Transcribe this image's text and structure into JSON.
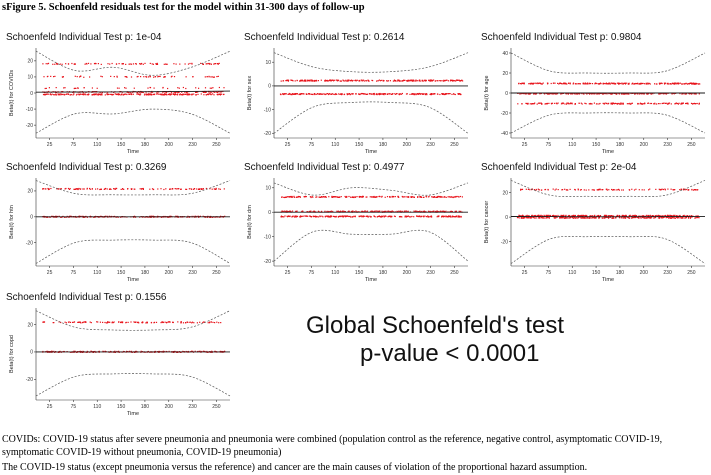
{
  "figure_title": "sFigure 5. Schoenfeld residuals test for the model within 31-300 days of follow-up",
  "global_test": {
    "line1": "Global Schoenfeld's test",
    "line2": "p-value < 0.0001"
  },
  "footnotes": [
    "COVIDs: COVID-19 status after severe pneumonia and pneumonia were combined (population control as the reference, negative control, asymptomatic COVID-19, symptomatic COVID-19 without pneumonia, COVID-19 pneumonia)",
    "The COVID-19 status (except pneumonia versus the reference) and cancer are the main causes of violation of the proportional hazard assumption."
  ],
  "colors": {
    "points": "#e8141c",
    "fit": "#1a1a1a",
    "band": "#555555",
    "axis": "#333333"
  },
  "chart_data": [
    {
      "type": "scatter",
      "title": "Schoenfeld Individual Test p: 1e-04",
      "xlabel": "Time",
      "ylabel": "Beta(t) for COVIDs",
      "x_ticks": [
        "25",
        "75",
        "110",
        "150",
        "180",
        "200",
        "230",
        "250"
      ],
      "y_ticks": [
        -20,
        -10,
        0,
        10,
        20
      ],
      "ylim": [
        -28,
        28
      ],
      "point_bands": [
        -0.5,
        1.0,
        3.5,
        10.5,
        18.5
      ],
      "point_band_density": [
        1.0,
        0.6,
        0.15,
        0.25,
        0.35
      ],
      "fit": [
        0.5,
        0.6,
        0.7,
        0.8,
        1.0,
        1.2
      ],
      "ci_upper": [
        26,
        14,
        16,
        11,
        16,
        26
      ],
      "ci_lower": [
        -25,
        -13,
        -13,
        -10,
        -13,
        -25
      ]
    },
    {
      "type": "scatter",
      "title": "Schoenfeld Individual Test p: 0.2614",
      "xlabel": "Time",
      "ylabel": "Beta(t) for sex",
      "x_ticks": [
        "25",
        "75",
        "110",
        "150",
        "180",
        "200",
        "230",
        "250"
      ],
      "y_ticks": [
        -20,
        -10,
        0,
        10
      ],
      "ylim": [
        -22,
        16
      ],
      "point_bands": [
        2.5,
        -3.2
      ],
      "point_band_density": [
        1.0,
        1.0
      ],
      "fit": [
        0.0,
        0.0,
        0.0,
        0.0,
        0.0,
        0.0
      ],
      "ci_upper": [
        14,
        8,
        6,
        6,
        8,
        14
      ],
      "ci_lower": [
        -20,
        -9,
        -7,
        -7,
        -9,
        -20
      ]
    },
    {
      "type": "scatter",
      "title": "Schoenfeld Individual Test p: 0.9804",
      "xlabel": "Time",
      "ylabel": "Beta(t) for age",
      "x_ticks": [
        "25",
        "75",
        "110",
        "150",
        "180",
        "200",
        "230",
        "250"
      ],
      "y_ticks": [
        -40,
        -20,
        0,
        20,
        40
      ],
      "ylim": [
        -45,
        45
      ],
      "point_bands": [
        10,
        0,
        -10
      ],
      "point_band_density": [
        1.0,
        1.0,
        0.7
      ],
      "fit": [
        0.0,
        0.0,
        0.0,
        0.0,
        0.0,
        0.0
      ],
      "ci_upper": [
        40,
        22,
        20,
        20,
        22,
        40
      ],
      "ci_lower": [
        -40,
        -22,
        -20,
        -20,
        -22,
        -40
      ]
    },
    {
      "type": "scatter",
      "title": "Schoenfeld Individual Test p: 0.3269",
      "xlabel": "Time",
      "ylabel": "Beta(t) for htn",
      "x_ticks": [
        "25",
        "75",
        "110",
        "150",
        "180",
        "200",
        "230",
        "250"
      ],
      "y_ticks": [
        -20,
        0,
        20
      ],
      "ylim": [
        -38,
        30
      ],
      "point_bands": [
        0.5,
        22
      ],
      "point_band_density": [
        1.0,
        0.5
      ],
      "fit": [
        0.0,
        0.0,
        0.0,
        0.0,
        0.0,
        0.0
      ],
      "ci_upper": [
        28,
        18,
        17,
        17,
        18,
        28
      ],
      "ci_lower": [
        -36,
        -20,
        -18,
        -18,
        -20,
        -36
      ]
    },
    {
      "type": "scatter",
      "title": "Schoenfeld Individual Test p: 0.4977",
      "xlabel": "Time",
      "ylabel": "Beta(t) for dm",
      "x_ticks": [
        "25",
        "75",
        "110",
        "150",
        "180",
        "200",
        "230",
        "250"
      ],
      "y_ticks": [
        -20,
        -10,
        0,
        10
      ],
      "ylim": [
        -22,
        14
      ],
      "point_bands": [
        6.5,
        0.5,
        -1.5
      ],
      "point_band_density": [
        0.8,
        1.0,
        1.0
      ],
      "fit": [
        0.0,
        0.0,
        0.0,
        0.0,
        0.0,
        0.0
      ],
      "ci_upper": [
        12,
        7,
        10,
        9,
        7,
        12
      ],
      "ci_lower": [
        -20,
        -8,
        -9,
        -9,
        -8,
        -20
      ]
    },
    {
      "type": "scatter",
      "title": "Schoenfeld Individual Test p: 2e-04",
      "xlabel": "Time",
      "ylabel": "Beta(t) for cancer",
      "x_ticks": [
        "25",
        "75",
        "110",
        "150",
        "180",
        "200",
        "230",
        "250"
      ],
      "y_ticks": [
        -20,
        0,
        20
      ],
      "ylim": [
        -40,
        32
      ],
      "point_bands": [
        1.5,
        0.0,
        23
      ],
      "point_band_density": [
        1.0,
        1.0,
        0.45
      ],
      "fit": [
        0.5,
        0.4,
        0.3,
        0.3,
        0.4,
        0.6
      ],
      "ci_upper": [
        30,
        18,
        17,
        17,
        18,
        30
      ],
      "ci_lower": [
        -38,
        -18,
        -16,
        -16,
        -18,
        -38
      ]
    },
    {
      "type": "scatter",
      "title": "Schoenfeld Individual Test p: 0.1556",
      "xlabel": "Time",
      "ylabel": "Beta(t) for copd",
      "x_ticks": [
        "25",
        "75",
        "110",
        "150",
        "180",
        "200",
        "230",
        "250"
      ],
      "y_ticks": [
        -20,
        0,
        20
      ],
      "ylim": [
        -35,
        32
      ],
      "point_bands": [
        22,
        0.5
      ],
      "point_band_density": [
        0.5,
        1.0
      ],
      "fit": [
        0.0,
        0.0,
        0.0,
        0.0,
        0.0,
        0.0
      ],
      "ci_upper": [
        30,
        18,
        16,
        16,
        18,
        30
      ],
      "ci_lower": [
        -32,
        -18,
        -16,
        -16,
        -18,
        -32
      ]
    }
  ]
}
